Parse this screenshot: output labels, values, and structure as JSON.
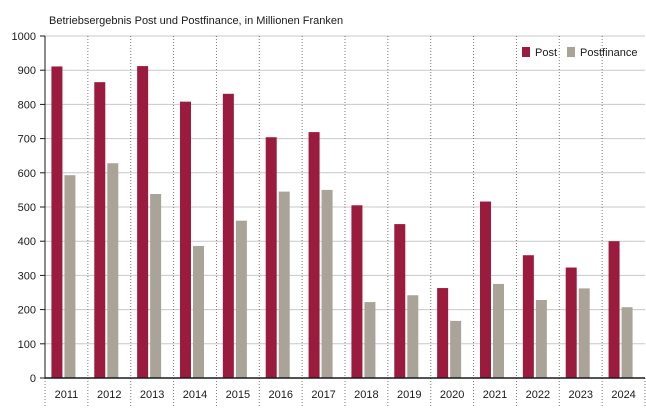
{
  "chart_data": {
    "type": "bar",
    "title": "Betriebsergebnis Post und Postfinance, in Millionen Franken",
    "xlabel": "",
    "ylabel": "",
    "ylim": [
      0,
      1000
    ],
    "yticks": [
      0,
      100,
      200,
      300,
      400,
      500,
      600,
      700,
      800,
      900,
      1000
    ],
    "categories": [
      "2011",
      "2012",
      "2013",
      "2014",
      "2015",
      "2016",
      "2017",
      "2018",
      "2019",
      "2020",
      "2021",
      "2022",
      "2023",
      "2024"
    ],
    "series": [
      {
        "name": "Post",
        "color": "#9b1b3e",
        "values": [
          911,
          865,
          912,
          808,
          831,
          704,
          719,
          505,
          450,
          263,
          516,
          359,
          323,
          400
        ]
      },
      {
        "name": "Postfinance",
        "color": "#aaa398",
        "values": [
          593,
          628,
          538,
          386,
          460,
          545,
          550,
          222,
          242,
          167,
          275,
          228,
          262,
          207
        ]
      }
    ],
    "grid": "horizontal solid, vertical dotted",
    "legend_position": "top-right"
  }
}
